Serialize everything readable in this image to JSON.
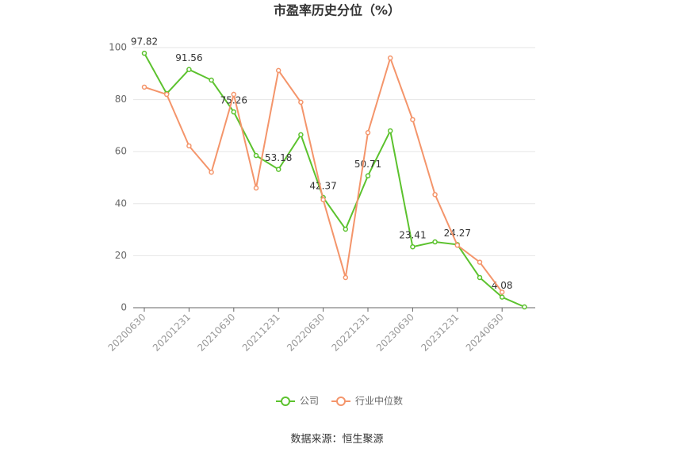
{
  "chart_data": {
    "type": "line",
    "title": "市盈率历史分位（%）",
    "categories": [
      "20200630",
      null,
      "20201231",
      null,
      "20210630",
      null,
      "20211231",
      null,
      "20220630",
      null,
      "20221231",
      null,
      "20230630",
      null,
      "20231231",
      null,
      "20240630",
      null
    ],
    "series": [
      {
        "name": "公司",
        "color": "#5cc22e",
        "values": [
          97.82,
          82.3,
          91.56,
          87.5,
          75.26,
          58.5,
          53.18,
          66.5,
          42.37,
          30.2,
          50.71,
          68,
          23.41,
          25.3,
          24.27,
          11.6,
          4.08,
          0.3
        ],
        "value_labels": [
          "97.82",
          null,
          "91.56",
          null,
          "75.26",
          null,
          "53.18",
          null,
          "42.37",
          null,
          "50.71",
          null,
          "23.41",
          null,
          "24.27",
          null,
          "4.08",
          null
        ]
      },
      {
        "name": "行业中位数",
        "color": "#f4956b",
        "values": [
          84.8,
          82,
          62.2,
          52.1,
          82,
          46,
          91.2,
          79,
          41.5,
          11.6,
          67.3,
          96,
          72.3,
          43.5,
          24,
          17.5,
          6,
          null
        ]
      }
    ],
    "ylim": [
      0,
      100
    ],
    "yticks": [
      0,
      20,
      40,
      60,
      80,
      100
    ],
    "grid": true,
    "legend": "bottom",
    "source": "数据来源：恒生聚源"
  }
}
